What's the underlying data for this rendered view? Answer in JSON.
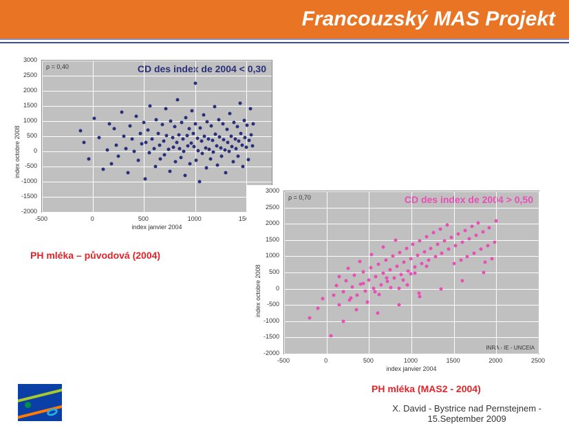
{
  "slide_title": "Francouzský MAS Projekt",
  "footer": {
    "author_line1": "X. David - Bystrice nad Pernstejnem -",
    "author_line2": "15.September 2009"
  },
  "chart1": {
    "type": "scatter",
    "title": "CD des index de 2004 < 0,30",
    "title_color": "#2a2f7a",
    "rho_label": "ρ = 0,40",
    "xlabel": "index janvier 2004",
    "ylabel": "index octobre 2008",
    "xlim": [
      -500,
      1750
    ],
    "ylim": [
      -2000,
      3000
    ],
    "xtick_step": 500,
    "ytick_step": 500,
    "background": "#c0c0c0",
    "grid_color": "#ffffff",
    "point_color": "#2a2f7a",
    "caption": "PH mléka – původová (2004)",
    "points": [
      [
        -120,
        680
      ],
      [
        -90,
        300
      ],
      [
        -40,
        -250
      ],
      [
        10,
        1100
      ],
      [
        60,
        450
      ],
      [
        100,
        -600
      ],
      [
        140,
        50
      ],
      [
        160,
        900
      ],
      [
        180,
        -400
      ],
      [
        210,
        750
      ],
      [
        230,
        200
      ],
      [
        250,
        -150
      ],
      [
        280,
        1300
      ],
      [
        300,
        500
      ],
      [
        320,
        100
      ],
      [
        340,
        -700
      ],
      [
        360,
        850
      ],
      [
        380,
        400
      ],
      [
        400,
        0
      ],
      [
        420,
        1150
      ],
      [
        440,
        -300
      ],
      [
        460,
        600
      ],
      [
        480,
        250
      ],
      [
        500,
        950
      ],
      [
        510,
        -900
      ],
      [
        520,
        300
      ],
      [
        540,
        700
      ],
      [
        550,
        -50
      ],
      [
        560,
        1500
      ],
      [
        580,
        420
      ],
      [
        600,
        80
      ],
      [
        610,
        -500
      ],
      [
        620,
        1050
      ],
      [
        640,
        600
      ],
      [
        650,
        200
      ],
      [
        660,
        -250
      ],
      [
        680,
        880
      ],
      [
        690,
        350
      ],
      [
        700,
        -120
      ],
      [
        710,
        1400
      ],
      [
        720,
        520
      ],
      [
        740,
        60
      ],
      [
        750,
        -650
      ],
      [
        760,
        1000
      ],
      [
        780,
        460
      ],
      [
        790,
        140
      ],
      [
        800,
        820
      ],
      [
        810,
        -350
      ],
      [
        820,
        300
      ],
      [
        830,
        1700
      ],
      [
        840,
        550
      ],
      [
        850,
        100
      ],
      [
        860,
        -200
      ],
      [
        870,
        950
      ],
      [
        880,
        400
      ],
      [
        890,
        10
      ],
      [
        900,
        -800
      ],
      [
        910,
        1120
      ],
      [
        920,
        520
      ],
      [
        930,
        180
      ],
      [
        940,
        740
      ],
      [
        950,
        -420
      ],
      [
        960,
        280
      ],
      [
        970,
        1350
      ],
      [
        980,
        600
      ],
      [
        990,
        150
      ],
      [
        1000,
        2250
      ],
      [
        1000,
        900
      ],
      [
        1010,
        -300
      ],
      [
        1020,
        430
      ],
      [
        1030,
        20
      ],
      [
        1040,
        -1000
      ],
      [
        1050,
        780
      ],
      [
        1060,
        340
      ],
      [
        1070,
        -60
      ],
      [
        1080,
        1200
      ],
      [
        1090,
        500
      ],
      [
        1100,
        120
      ],
      [
        1110,
        -550
      ],
      [
        1120,
        980
      ],
      [
        1130,
        410
      ],
      [
        1140,
        70
      ],
      [
        1150,
        -250
      ],
      [
        1160,
        840
      ],
      [
        1170,
        360
      ],
      [
        1180,
        -30
      ],
      [
        1190,
        1480
      ],
      [
        1200,
        560
      ],
      [
        1210,
        190
      ],
      [
        1220,
        -450
      ],
      [
        1230,
        1050
      ],
      [
        1240,
        470
      ],
      [
        1250,
        110
      ],
      [
        1260,
        -160
      ],
      [
        1270,
        900
      ],
      [
        1280,
        380
      ],
      [
        1290,
        40
      ],
      [
        1300,
        -700
      ],
      [
        1310,
        730
      ],
      [
        1320,
        300
      ],
      [
        1330,
        -10
      ],
      [
        1340,
        1250
      ],
      [
        1350,
        510
      ],
      [
        1360,
        160
      ],
      [
        1370,
        -350
      ],
      [
        1380,
        960
      ],
      [
        1390,
        420
      ],
      [
        1400,
        90
      ],
      [
        1410,
        810
      ],
      [
        1420,
        -150
      ],
      [
        1430,
        340
      ],
      [
        1440,
        1600
      ],
      [
        1450,
        580
      ],
      [
        1460,
        210
      ],
      [
        1470,
        -500
      ],
      [
        1480,
        1030
      ],
      [
        1490,
        450
      ],
      [
        1500,
        130
      ],
      [
        1510,
        870
      ],
      [
        1520,
        -280
      ],
      [
        1530,
        370
      ],
      [
        1540,
        1400
      ],
      [
        1550,
        540
      ],
      [
        1560,
        180
      ],
      [
        1570,
        920
      ]
    ]
  },
  "chart2": {
    "type": "scatter",
    "title": "CD des index de 2004 > 0,50",
    "title_color": "#e84fb5",
    "rho_label": "ρ = 0,70",
    "xlabel": "index janvier 2004",
    "ylabel": "index octobre 2008",
    "xlim": [
      -500,
      2500
    ],
    "ylim": [
      -2000,
      3000
    ],
    "xtick_step": 500,
    "ytick_step": 500,
    "background": "#c0c0c0",
    "grid_color": "#ffffff",
    "point_color": "#e84fb5",
    "attribution": "INRA - IE - UNCEIA",
    "caption": "PH mléka (MAS2 - 2004)",
    "points": [
      [
        -200,
        -900
      ],
      [
        -100,
        -600
      ],
      [
        -50,
        -300
      ],
      [
        50,
        -1450
      ],
      [
        80,
        -200
      ],
      [
        120,
        100
      ],
      [
        150,
        -500
      ],
      [
        200,
        -100
      ],
      [
        230,
        250
      ],
      [
        270,
        -350
      ],
      [
        300,
        50
      ],
      [
        330,
        420
      ],
      [
        360,
        -200
      ],
      [
        400,
        150
      ],
      [
        430,
        520
      ],
      [
        460,
        -80
      ],
      [
        500,
        260
      ],
      [
        520,
        640
      ],
      [
        550,
        10
      ],
      [
        580,
        370
      ],
      [
        610,
        760
      ],
      [
        640,
        110
      ],
      [
        670,
        480
      ],
      [
        700,
        880
      ],
      [
        720,
        220
      ],
      [
        750,
        590
      ],
      [
        780,
        1000
      ],
      [
        800,
        330
      ],
      [
        830,
        700
      ],
      [
        860,
        1120
      ],
      [
        880,
        440
      ],
      [
        910,
        810
      ],
      [
        940,
        1240
      ],
      [
        960,
        550
      ],
      [
        990,
        920
      ],
      [
        1020,
        1360
      ],
      [
        1040,
        660
      ],
      [
        1070,
        1030
      ],
      [
        1100,
        1480
      ],
      [
        1120,
        770
      ],
      [
        1150,
        1140
      ],
      [
        1180,
        1600
      ],
      [
        1200,
        880
      ],
      [
        1230,
        1250
      ],
      [
        1260,
        1720
      ],
      [
        1280,
        990
      ],
      [
        1310,
        1360
      ],
      [
        1340,
        1840
      ],
      [
        1360,
        1100
      ],
      [
        1390,
        1470
      ],
      [
        1420,
        1960
      ],
      [
        1440,
        1210
      ],
      [
        1470,
        1580
      ],
      [
        1500,
        770
      ],
      [
        1520,
        1320
      ],
      [
        1550,
        1690
      ],
      [
        1580,
        880
      ],
      [
        1600,
        1430
      ],
      [
        1630,
        1800
      ],
      [
        1660,
        990
      ],
      [
        1680,
        1540
      ],
      [
        1710,
        1910
      ],
      [
        1740,
        1100
      ],
      [
        1760,
        1650
      ],
      [
        1790,
        2020
      ],
      [
        1820,
        1210
      ],
      [
        1840,
        1760
      ],
      [
        1870,
        820
      ],
      [
        1900,
        1320
      ],
      [
        1920,
        1870
      ],
      [
        1950,
        930
      ],
      [
        1980,
        1430
      ],
      [
        2000,
        2080
      ],
      [
        350,
        -650
      ],
      [
        480,
        -420
      ],
      [
        620,
        -180
      ],
      [
        760,
        40
      ],
      [
        900,
        260
      ],
      [
        1040,
        480
      ],
      [
        1180,
        700
      ],
      [
        250,
        620
      ],
      [
        390,
        840
      ],
      [
        530,
        1060
      ],
      [
        670,
        1280
      ],
      [
        810,
        1500
      ],
      [
        950,
        120
      ],
      [
        1090,
        -140
      ],
      [
        150,
        380
      ],
      [
        290,
        -280
      ],
      [
        430,
        170
      ],
      [
        570,
        -100
      ],
      [
        710,
        330
      ],
      [
        850,
        10
      ],
      [
        990,
        460
      ],
      [
        200,
        -1000
      ],
      [
        600,
        -750
      ],
      [
        850,
        -500
      ],
      [
        1100,
        -250
      ],
      [
        1350,
        0
      ],
      [
        1600,
        250
      ],
      [
        1850,
        500
      ]
    ]
  }
}
